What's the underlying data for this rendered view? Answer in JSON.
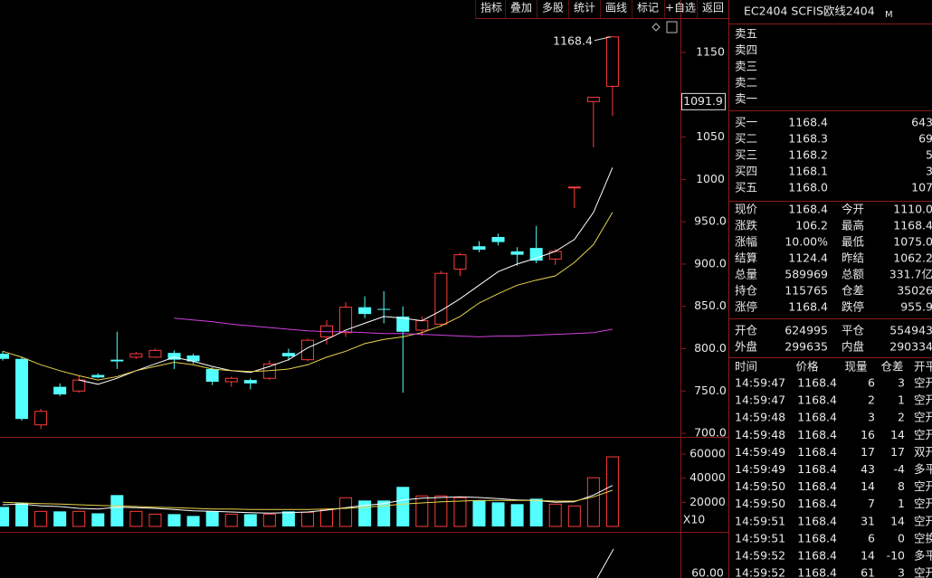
{
  "toolbar": [
    "指标",
    "叠加",
    "多股",
    "统计",
    "画线",
    "标记",
    "+自选",
    "返回"
  ],
  "chart_data": [
    {
      "type": "candlestick",
      "open": [
        794,
        788,
        710,
        755,
        750,
        769,
        787,
        790,
        790,
        795,
        792,
        776,
        761,
        763,
        765,
        795,
        787,
        814,
        819,
        849,
        847,
        838,
        822,
        829,
        894,
        921,
        932,
        915,
        919,
        906,
        990,
        1092,
        1110.0
      ],
      "high": [
        797,
        790,
        729,
        759,
        768,
        771,
        820,
        796,
        800,
        798,
        794,
        778,
        767,
        765,
        786,
        800,
        812,
        834,
        855,
        862,
        868,
        850,
        838,
        892,
        913,
        927,
        936,
        920,
        945,
        918,
        991,
        1097,
        1168.4
      ],
      "low": [
        786,
        715,
        705,
        744,
        748,
        765,
        776,
        788,
        789,
        776,
        782,
        757,
        755,
        752,
        763,
        786,
        785,
        805,
        814,
        836,
        830,
        748,
        815,
        826,
        886,
        914,
        922,
        898,
        901,
        899,
        966,
        1038,
        1075.0
      ],
      "close": [
        788,
        717,
        726,
        746,
        763,
        766,
        785,
        794,
        798,
        787,
        785,
        761,
        765,
        759,
        782,
        791,
        810,
        827,
        849,
        841,
        846,
        820,
        833,
        889,
        911,
        917,
        926,
        911,
        904,
        915,
        991,
        1097,
        1168.4
      ],
      "up_color": "#ff3c3c",
      "down_color": "#54ffff",
      "series": [
        {
          "color": "#ffffff",
          "values": [
            null,
            null,
            null,
            null,
            763,
            758,
            765,
            774,
            782,
            790,
            785,
            779,
            774,
            772,
            779,
            787,
            801,
            811,
            822,
            830,
            838,
            836,
            833,
            845,
            859,
            875,
            891,
            900,
            907,
            915,
            929,
            961,
            1014
          ]
        },
        {
          "color": "#e8d44d",
          "values": [
            797,
            790,
            781,
            774,
            768,
            763,
            767,
            774,
            779,
            784,
            781,
            776,
            774,
            773,
            774,
            776,
            781,
            790,
            797,
            806,
            811,
            814,
            819,
            827,
            838,
            854,
            865,
            875,
            881,
            886,
            902,
            923,
            961
          ]
        },
        {
          "color": "#d040e0",
          "values": [
            null,
            null,
            null,
            null,
            null,
            null,
            null,
            null,
            null,
            836,
            834,
            832,
            829,
            827,
            825,
            823,
            821,
            820,
            820,
            819,
            818,
            818,
            817,
            816,
            815,
            814,
            815,
            815,
            816,
            817,
            818,
            819,
            823
          ]
        }
      ],
      "ylim": [
        695.8,
        1190.6
      ],
      "yticks": [
        {
          "value": 700,
          "label": "700.0"
        },
        {
          "value": 750,
          "label": "750.0"
        },
        {
          "value": 800,
          "label": "800.0"
        },
        {
          "value": 850,
          "label": "850.0"
        },
        {
          "value": 900,
          "label": "900.0"
        },
        {
          "value": 950,
          "label": "950.0"
        },
        1000,
        1050,
        1150
      ],
      "max_label": "1168.4",
      "cursor_label": "1091.9"
    },
    {
      "type": "bar",
      "values": [
        16200,
        19200,
        12500,
        12500,
        12500,
        10900,
        26000,
        12500,
        10200,
        10200,
        8700,
        12500,
        10200,
        10200,
        10200,
        12500,
        11700,
        14000,
        23800,
        21500,
        21500,
        32800,
        25300,
        25300,
        23800,
        21500,
        20000,
        18500,
        23000,
        18500,
        17000,
        40400,
        57700
      ],
      "series": [
        {
          "color": "#ffffff",
          "values": [
            18000,
            18500,
            17000,
            16500,
            15000,
            14500,
            16000,
            15500,
            15000,
            14000,
            13000,
            12500,
            12000,
            11500,
            11000,
            11500,
            12000,
            13500,
            15500,
            17500,
            19000,
            22000,
            23500,
            24000,
            24500,
            24000,
            23000,
            22000,
            21500,
            20000,
            20500,
            26000,
            34000
          ]
        },
        {
          "color": "#e8d44d",
          "values": [
            20000,
            19500,
            19000,
            18500,
            18000,
            17500,
            17000,
            16500,
            16000,
            15500,
            15000,
            14500,
            14500,
            14000,
            14000,
            14000,
            14000,
            14500,
            15000,
            16000,
            17000,
            18500,
            19500,
            20500,
            21000,
            21500,
            21500,
            21500,
            21500,
            21000,
            21000,
            24500,
            30000
          ]
        }
      ],
      "ylim": [
        0,
        70500
      ],
      "yticks": [
        20000,
        40000,
        60000
      ],
      "unit_label": "X10"
    }
  ],
  "indicator_tick": "60.00",
  "panel": {
    "title": "EC2404 SCFIS欧线2404",
    "badge": "M",
    "asks": [
      "卖五",
      "卖四",
      "卖三",
      "卖二",
      "卖一"
    ],
    "bids": [
      [
        "买一",
        "1168.4",
        "643"
      ],
      [
        "买二",
        "1168.3",
        "69"
      ],
      [
        "买三",
        "1168.2",
        "5"
      ],
      [
        "买四",
        "1168.1",
        "3"
      ],
      [
        "买五",
        "1168.0",
        "107"
      ]
    ],
    "quotes": [
      [
        "现价",
        "1168.4",
        "今开",
        "1110.0"
      ],
      [
        "涨跌",
        "106.2",
        "最高",
        "1168.4"
      ],
      [
        "涨幅",
        "10.00%",
        "最低",
        "1075.0"
      ],
      [
        "结算",
        "1124.4",
        "昨结",
        "1062.2"
      ],
      [
        "总量",
        "589969",
        "总额",
        "331.7亿"
      ],
      [
        "持仓",
        "115765",
        "仓差",
        "35026"
      ],
      [
        "涨停",
        "1168.4",
        "跌停",
        "955.9"
      ]
    ],
    "flows": [
      [
        "开仓",
        "624995",
        "平仓",
        "554943"
      ],
      [
        "外盘",
        "299635",
        "内盘",
        "290334"
      ]
    ],
    "trades_header": [
      "时间",
      "价格",
      "现量",
      "仓差",
      "开平"
    ],
    "trades": [
      [
        "14:59:47",
        "1168.4",
        "6",
        "3",
        "空开"
      ],
      [
        "14:59:47",
        "1168.4",
        "2",
        "1",
        "空开"
      ],
      [
        "14:59:48",
        "1168.4",
        "3",
        "2",
        "空开"
      ],
      [
        "14:59:48",
        "1168.4",
        "16",
        "14",
        "空开"
      ],
      [
        "14:59:49",
        "1168.4",
        "17",
        "17",
        "双开"
      ],
      [
        "14:59:49",
        "1168.4",
        "43",
        "-4",
        "多平"
      ],
      [
        "14:59:50",
        "1168.4",
        "14",
        "8",
        "空开"
      ],
      [
        "14:59:50",
        "1168.4",
        "7",
        "1",
        "空开"
      ],
      [
        "14:59:51",
        "1168.4",
        "31",
        "14",
        "空开"
      ],
      [
        "14:59:51",
        "1168.4",
        "6",
        "0",
        "空换"
      ],
      [
        "14:59:52",
        "1168.4",
        "14",
        "-10",
        "多平"
      ],
      [
        "14:59:52",
        "1168.4",
        "61",
        "3",
        "空开"
      ]
    ]
  }
}
